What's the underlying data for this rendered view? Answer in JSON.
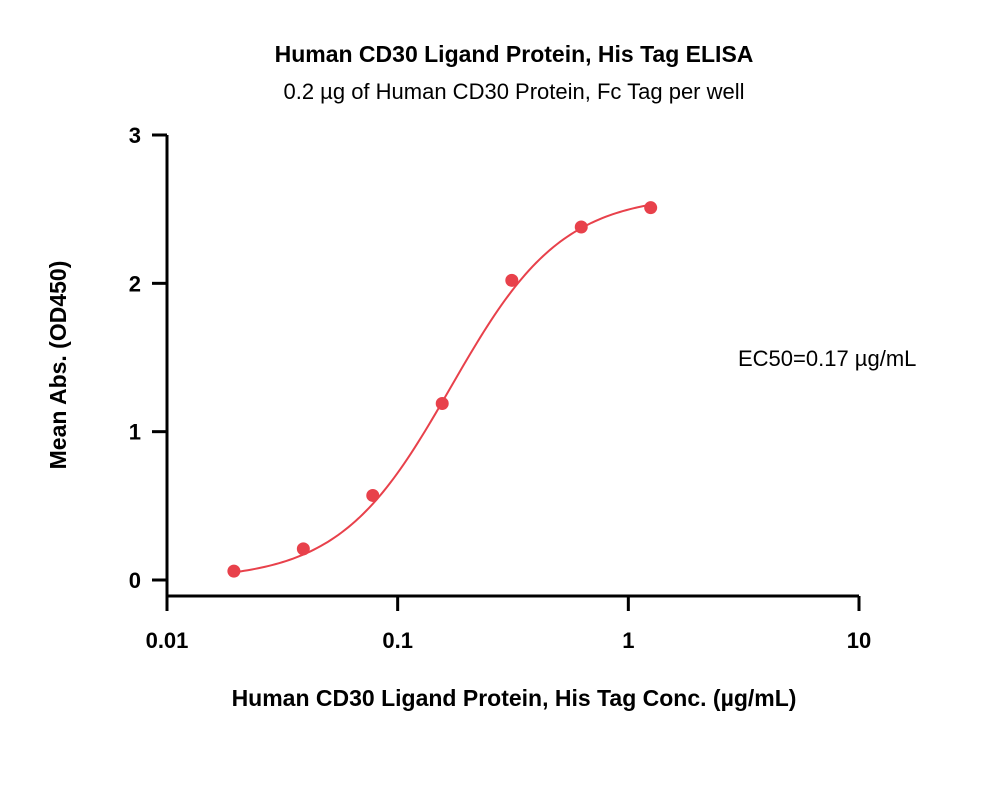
{
  "chart_data": {
    "type": "scatter",
    "title": "Human CD30 Ligand Protein, His Tag ELISA",
    "subtitle": "0.2 µg of Human CD30 Protein, Fc Tag per well",
    "xlabel": "Human CD30 Ligand Protein, His Tag Conc. (µg/mL)",
    "ylabel": "Mean Abs. (OD450)",
    "x_scale": "log",
    "xlim": [
      0.01,
      10
    ],
    "ylim": [
      0,
      3
    ],
    "x_ticks": [
      "0.01",
      "0.1",
      "1",
      "10"
    ],
    "y_ticks": [
      "0",
      "1",
      "2",
      "3"
    ],
    "grid": false,
    "series": [
      {
        "color": "#e8414b",
        "x": [
          0.0195,
          0.039,
          0.078,
          0.156,
          0.3125,
          0.625,
          1.25
        ],
        "values": [
          0.06,
          0.21,
          0.57,
          1.19,
          2.02,
          2.38,
          2.51
        ],
        "fit": "4PL"
      }
    ],
    "annotations": [
      "EC50=0.17 µg/mL"
    ],
    "ec50": 0.17
  }
}
